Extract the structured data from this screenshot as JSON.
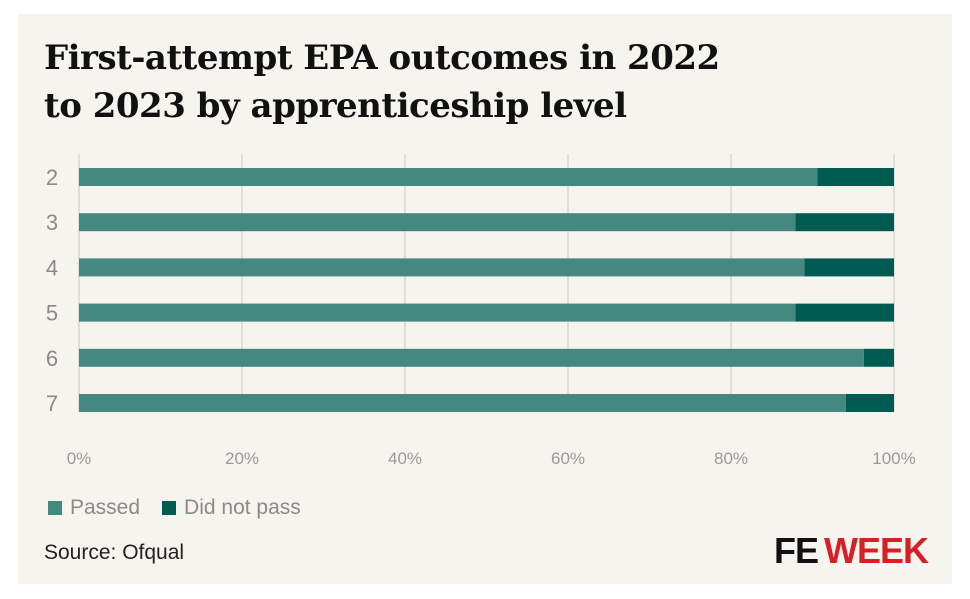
{
  "chart_data": {
    "type": "bar",
    "orientation": "horizontal",
    "stacked": true,
    "title": "First-attempt EPA outcomes in 2022 to 2023 by apprenticeship level",
    "categories": [
      "2",
      "3",
      "4",
      "5",
      "6",
      "7"
    ],
    "series": [
      {
        "name": "Passed",
        "color": "#45887f",
        "values": [
          90.6,
          87.9,
          89.0,
          87.9,
          96.3,
          94.1
        ]
      },
      {
        "name": "Did not pass",
        "color": "#005c52",
        "values": [
          9.4,
          12.1,
          11.0,
          12.1,
          3.7,
          5.9
        ]
      }
    ],
    "xlim": [
      0,
      100
    ],
    "x_ticks": [
      "0%",
      "20%",
      "40%",
      "60%",
      "80%",
      "100%"
    ],
    "grid": true,
    "legend_position": "bottom-left"
  },
  "title_line1": "First-attempt EPA outcomes in 2022",
  "title_line2": "to 2023 by apprenticeship level",
  "source": "Source: Ofqual",
  "logo": {
    "fe": "FE",
    "week": "WEEK",
    "fe_color": "#111111",
    "week_color": "#d81f26"
  }
}
